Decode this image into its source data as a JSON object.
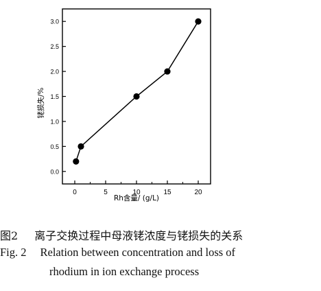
{
  "chart_data": {
    "type": "line",
    "xlabel": "Rh含量/ (g/L)",
    "ylabel": "铑损失/%",
    "xlim": [
      -2,
      22
    ],
    "ylim": [
      -0.25,
      3.25
    ],
    "x_ticks": [
      "0",
      "5",
      "10",
      "15",
      "20"
    ],
    "y_ticks": [
      "0.0",
      "0.5",
      "1.0",
      "1.5",
      "2.0",
      "2.5",
      "3.0"
    ],
    "grid": false,
    "series": [
      {
        "x": [
          0.2,
          1,
          10,
          15,
          20
        ],
        "y": [
          0.2,
          0.5,
          1.5,
          2.0,
          3.0
        ],
        "color": "#000000",
        "marker": "filled-circle"
      }
    ]
  },
  "caption": {
    "cn_number": "图2",
    "cn_text": "离子交换过程中母液铑浓度与铑损失的关系",
    "en_number": "Fig. 2",
    "en_line1": "Relation between concentration and loss of",
    "en_line2": "rhodium in ion exchange process"
  }
}
